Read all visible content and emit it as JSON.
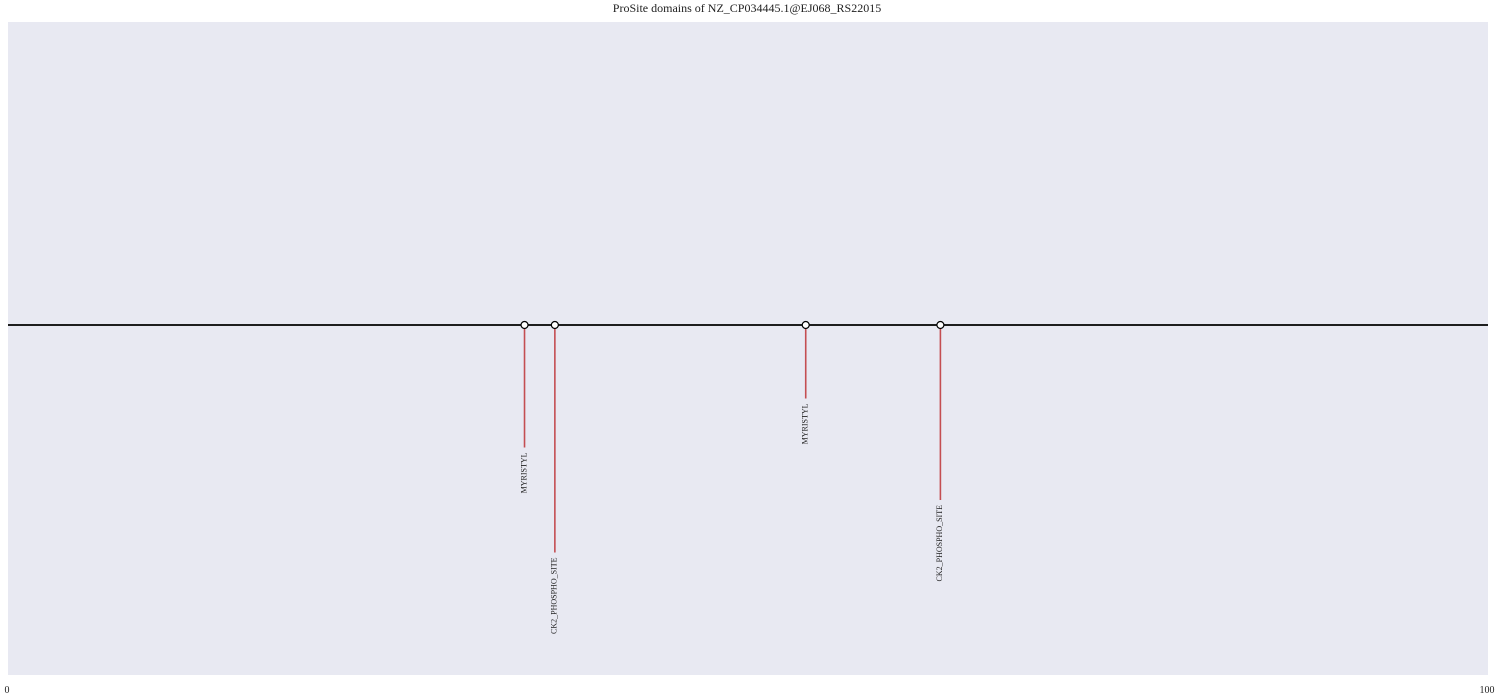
{
  "title": "ProSite domains of NZ_CP034445.1@EJ068_RS22015",
  "colors": {
    "background": "#e8e9f2",
    "backbone": "#000000",
    "stem": "#c44e52",
    "marker_fill": "#ffffff",
    "marker_edge": "#000000"
  },
  "chart_data": {
    "type": "lollipop",
    "title": "ProSite domains of NZ_CP034445.1@EJ068_RS22015",
    "xlim": [
      0,
      100
    ],
    "ylim": [
      -1,
      0
    ],
    "grid": false,
    "x_tick_labels": [
      "0",
      "100"
    ],
    "sites": [
      {
        "name": "MYRISTYL",
        "x": 34.9,
        "y": -0.35
      },
      {
        "name": "CK2_PHOSPHO_SITE",
        "x": 36.95,
        "y": -0.65
      },
      {
        "name": "MYRISTYL",
        "x": 53.9,
        "y": -0.21
      },
      {
        "name": "CK2_PHOSPHO_SITE",
        "x": 63.0,
        "y": -0.5
      }
    ]
  }
}
